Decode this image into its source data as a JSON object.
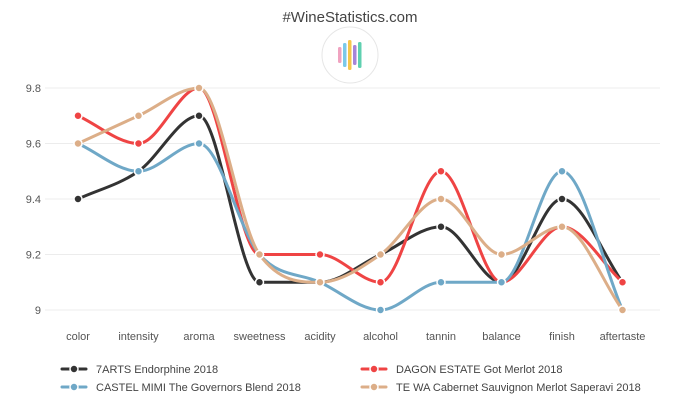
{
  "chart_data": {
    "type": "line",
    "title": "#WineStatistics.com",
    "categories": [
      "color",
      "intensity",
      "aroma",
      "sweetness",
      "acidity",
      "alcohol",
      "tannin",
      "balance",
      "finish",
      "aftertaste"
    ],
    "ylim": [
      9.0,
      9.8
    ],
    "yticks": [
      9.0,
      9.2,
      9.4,
      9.6,
      9.8
    ],
    "ytick_labels": [
      "9",
      "9.2",
      "9.4",
      "9.6",
      "9.8"
    ],
    "xlabel": "",
    "ylabel": "",
    "grid": true,
    "legend_position": "bottom",
    "series": [
      {
        "name": "7ARTS Endorphine 2018",
        "color": "#333333",
        "values": [
          9.4,
          9.5,
          9.7,
          9.1,
          9.1,
          9.2,
          9.3,
          9.1,
          9.4,
          9.1
        ]
      },
      {
        "name": "DAGON ESTATE Got Merlot 2018",
        "color": "#ef4444",
        "values": [
          9.7,
          9.6,
          9.8,
          9.2,
          9.2,
          9.1,
          9.5,
          9.1,
          9.3,
          9.1
        ]
      },
      {
        "name": "CASTEL MIMI The Governors Blend 2018",
        "color": "#6fa8c7",
        "values": [
          9.6,
          9.5,
          9.6,
          9.2,
          9.1,
          9.0,
          9.1,
          9.1,
          9.5,
          9.0
        ]
      },
      {
        "name": "TE WA Cabernet Sauvignon Merlot Saperavi 2018",
        "color": "#dcae88",
        "values": [
          9.6,
          9.7,
          9.8,
          9.2,
          9.1,
          9.2,
          9.4,
          9.2,
          9.3,
          9.0
        ]
      }
    ]
  },
  "logo": {
    "name": "winestatistics-logo",
    "bar_colors": [
      "#f0a3c0",
      "#7cc9e8",
      "#f6c64b",
      "#a685d8",
      "#5fd0b0"
    ]
  }
}
